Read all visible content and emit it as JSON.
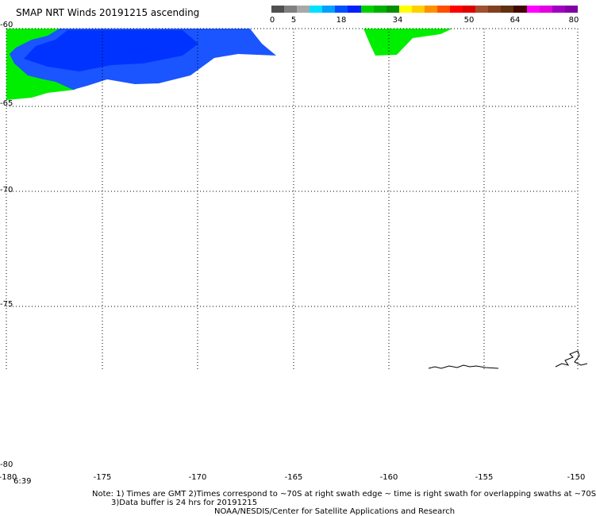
{
  "header": {
    "title": "SMAP NRT Winds 20191215 ascending"
  },
  "colorbar": {
    "labels": [
      "0",
      "5",
      "18",
      "34",
      "50",
      "64",
      "80"
    ],
    "colors": [
      "#505050",
      "#808080",
      "#a8a8a8",
      "#00e0ff",
      "#00a0ff",
      "#0050ff",
      "#0020ff",
      "#00d000",
      "#00b000",
      "#009000",
      "#ffff00",
      "#ffd000",
      "#ff9000",
      "#ff5000",
      "#ff0000",
      "#e00000",
      "#a05030",
      "#804020",
      "#603010",
      "#400800",
      "#ff00ff",
      "#e000e0",
      "#a000c0",
      "#8000a0"
    ]
  },
  "axes": {
    "lat_labels": [
      "-60",
      "-65",
      "-70",
      "-75",
      "-80"
    ],
    "lon_labels": [
      "-180",
      "-175",
      "-170",
      "-165",
      "-160",
      "-155",
      "-150"
    ],
    "time_label": "6:39"
  },
  "colors": {
    "wind_blue": "#0033ff",
    "wind_green": "#00ee00",
    "grid": "#000000"
  },
  "notes": {
    "line1": "Note: 1) Times are GMT 2)Times correspond to ~70S at right swath edge ~ time is right swath for overlapping swaths at ~70S",
    "line2": "3)Data buffer is 24 hrs for 20191215",
    "line3": "NOAA/NESDIS/Center for Satellite Applications and Research"
  }
}
